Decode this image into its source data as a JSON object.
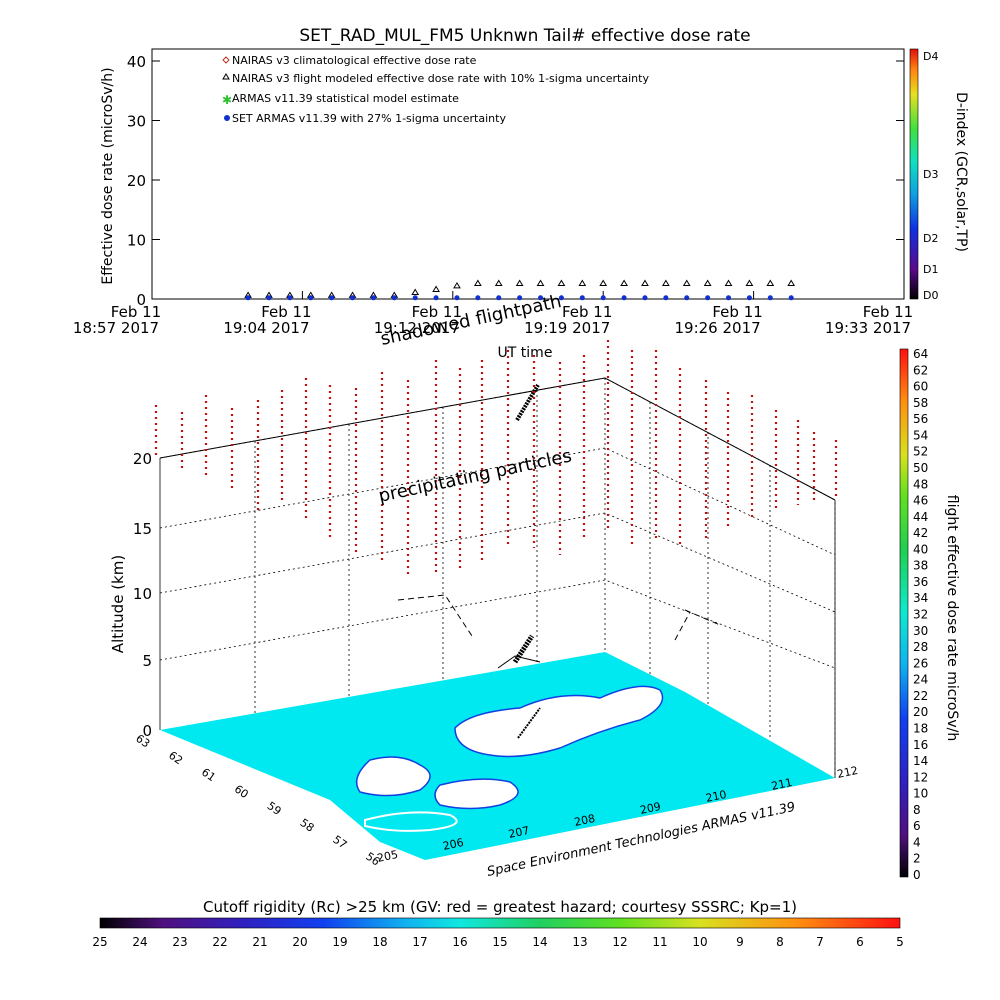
{
  "chart_data": [
    {
      "type": "scatter",
      "title": "SET_RAD_MUL_FM5 Unknwn Tail#  effective dose rate",
      "xlabel": "UT time",
      "ylabel": "Effective dose rate (microSv/h)",
      "ylim": [
        0,
        40
      ],
      "yticks": [
        "0",
        "10",
        "20",
        "30",
        "40"
      ],
      "x_ticks": [
        {
          "line1": "Feb 11",
          "line2": "18:57 2017"
        },
        {
          "line1": "Feb 11",
          "line2": "19:04 2017"
        },
        {
          "line1": "Feb 11",
          "line2": "19:12 2017"
        },
        {
          "line1": "Feb 11",
          "line2": "19:19 2017"
        },
        {
          "line1": "Feb 11",
          "line2": "19:26 2017"
        },
        {
          "line1": "Feb 11",
          "line2": "19:33 2017"
        }
      ],
      "x_minutes": [
        4.6,
        5.6,
        6.6,
        7.6,
        8.6,
        9.6,
        10.6,
        11.6,
        12.6,
        13.6,
        14.6,
        15.6,
        16.6,
        17.6,
        18.6,
        19.6,
        20.6,
        21.6,
        22.6,
        23.6,
        24.6,
        25.6,
        26.6,
        27.6,
        28.6,
        29.6,
        30.6
      ],
      "series": [
        {
          "name": "NAIRAS v3 climatological effective dose rate",
          "marker": "diamond",
          "color": "#c03020",
          "values": []
        },
        {
          "name": "NAIRAS v3 flight modeled effective dose rate with 10% 1-sigma uncertainty",
          "marker": "triangle",
          "color": "#000000",
          "values": [
            0.6,
            0.6,
            0.6,
            0.6,
            0.6,
            0.6,
            0.6,
            0.6,
            1.1,
            1.6,
            2.2,
            2.6,
            2.6,
            2.6,
            2.6,
            2.6,
            2.6,
            2.6,
            2.6,
            2.6,
            2.6,
            2.6,
            2.6,
            2.6,
            2.6,
            2.6,
            2.6
          ]
        },
        {
          "name": "ARMAS v11.39 statistical model estimate",
          "marker": "star",
          "color": "#30c030",
          "values": []
        },
        {
          "name": "SET ARMAS v11.39 with 27% 1-sigma uncertainty",
          "marker": "circle",
          "color": "#1030d0",
          "values": [
            0.2,
            0.2,
            0.2,
            0.2,
            0.2,
            0.2,
            0.2,
            0.2,
            0.2,
            0.2,
            0.2,
            0.2,
            0.2,
            0.2,
            0.2,
            0.2,
            0.2,
            0.2,
            0.2,
            0.2,
            0.2,
            0.2,
            0.2,
            0.2,
            0.2,
            0.2,
            0.2
          ]
        }
      ],
      "right_colorbar": {
        "title": "D-index (GCR,solar,TP)",
        "labels": [
          "D0",
          "D1",
          "D2",
          "D3",
          "D4"
        ]
      }
    },
    {
      "type": "scatter",
      "zlabel": "Altitude (km)",
      "zticks": [
        "0",
        "5",
        "10",
        "15",
        "20"
      ],
      "x_ticks": [
        "205",
        "206",
        "207",
        "208",
        "209",
        "210",
        "211",
        "212"
      ],
      "y_ticks": [
        "56",
        "57",
        "58",
        "59",
        "60",
        "61",
        "62",
        "63"
      ],
      "footer": "Space Environment Technologies ARMAS v11.39",
      "annotations": [
        "shadowed flightpath",
        "precipitating particles"
      ],
      "right_colorbar": {
        "title": "flight effective dose rate microSv/h",
        "labels": [
          "0",
          "2",
          "4",
          "6",
          "8",
          "10",
          "12",
          "14",
          "16",
          "18",
          "20",
          "22",
          "24",
          "26",
          "28",
          "30",
          "32",
          "34",
          "36",
          "38",
          "40",
          "42",
          "44",
          "46",
          "48",
          "50",
          "52",
          "54",
          "56",
          "58",
          "60",
          "62",
          "64"
        ]
      },
      "bottom_colorbar": {
        "title": "Cutoff rigidity (Rc) >25 km (GV: red = greatest hazard; courtesy SSSRC; Kp=1)",
        "labels": [
          "25",
          "24",
          "23",
          "22",
          "21",
          "20",
          "19",
          "18",
          "17",
          "16",
          "15",
          "14",
          "13",
          "12",
          "11",
          "10",
          "9",
          "8",
          "7",
          "6",
          "5"
        ]
      }
    }
  ]
}
